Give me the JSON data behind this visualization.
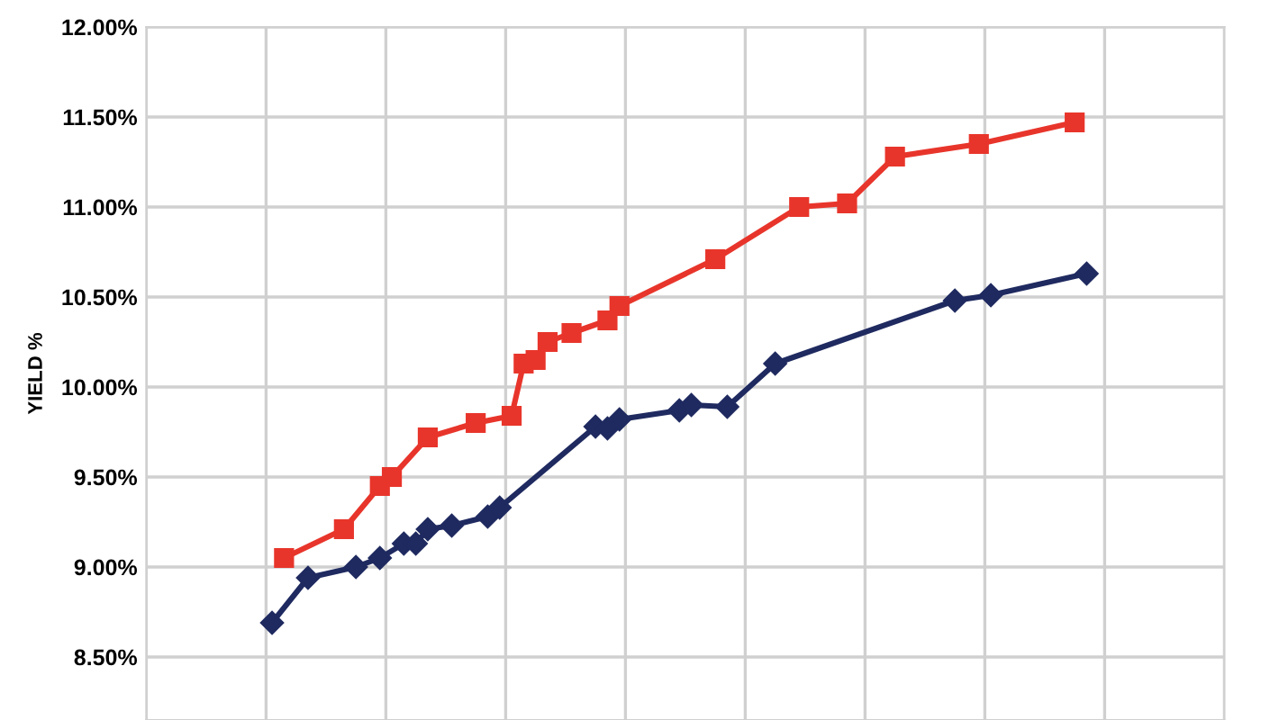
{
  "chart_data": {
    "type": "line",
    "ylabel": "YIELD %",
    "categories": [
      null,
      null,
      null,
      null,
      null,
      null,
      null,
      null,
      null,
      null,
      null,
      null,
      null,
      null,
      null,
      null,
      null,
      null,
      null,
      null,
      null,
      null,
      null,
      null,
      null,
      null,
      null,
      null,
      null,
      null,
      null,
      null,
      null,
      null,
      null,
      null,
      null,
      null,
      null,
      null,
      null,
      null,
      null,
      null,
      null,
      null,
      null,
      null,
      null,
      null,
      null,
      null,
      null,
      null,
      null,
      null,
      null,
      null,
      null,
      null,
      null,
      null,
      null,
      null,
      null,
      null,
      null,
      null,
      null,
      null,
      null,
      null,
      null,
      null,
      null,
      null,
      null,
      null,
      null,
      null,
      null,
      null,
      null,
      null,
      null,
      null,
      null,
      null,
      null,
      null
    ],
    "ylim": [
      8.15,
      12.0
    ],
    "yticks": [
      {
        "value": 8.5,
        "label": "8.50%"
      },
      {
        "value": 9.0,
        "label": "9.00%"
      },
      {
        "value": 9.5,
        "label": "9.50%"
      },
      {
        "value": 10.0,
        "label": "10.00%"
      },
      {
        "value": 10.5,
        "label": "10.50%"
      },
      {
        "value": 11.0,
        "label": "11.00%"
      },
      {
        "value": 11.5,
        "label": "11.50%"
      },
      {
        "value": 12.0,
        "label": "12.00%"
      }
    ],
    "tick_labels": "y",
    "grid": true,
    "line_style": "solid",
    "series": [
      {
        "color": "#e8352b",
        "marker": "square",
        "values": [
          null,
          null,
          null,
          null,
          null,
          null,
          null,
          null,
          null,
          null,
          null,
          9.05,
          null,
          null,
          null,
          null,
          9.21,
          null,
          null,
          9.45,
          9.5,
          null,
          null,
          9.72,
          null,
          null,
          null,
          9.8,
          null,
          null,
          9.84,
          10.13,
          10.15,
          10.25,
          null,
          10.3,
          null,
          null,
          10.37,
          10.45,
          null,
          null,
          null,
          null,
          null,
          null,
          null,
          10.71,
          null,
          null,
          null,
          null,
          null,
          null,
          11.0,
          null,
          null,
          null,
          11.02,
          null,
          null,
          null,
          11.28,
          null,
          null,
          null,
          null,
          null,
          null,
          11.35,
          null,
          null,
          null,
          null,
          null,
          null,
          null,
          11.47,
          null,
          null,
          null,
          null,
          null,
          null,
          null,
          null,
          null,
          null,
          null,
          null
        ]
      },
      {
        "color": "#1f2a60",
        "marker": "diamond",
        "values": [
          null,
          null,
          null,
          null,
          null,
          null,
          null,
          null,
          null,
          null,
          8.69,
          null,
          null,
          8.94,
          null,
          null,
          null,
          9.0,
          null,
          9.05,
          null,
          9.13,
          9.13,
          9.21,
          null,
          9.23,
          null,
          null,
          9.28,
          9.33,
          null,
          null,
          null,
          null,
          null,
          null,
          null,
          9.78,
          9.77,
          9.82,
          null,
          null,
          null,
          null,
          9.87,
          9.9,
          null,
          null,
          9.89,
          null,
          null,
          null,
          10.13,
          null,
          null,
          null,
          null,
          null,
          null,
          null,
          null,
          null,
          null,
          null,
          null,
          null,
          null,
          10.48,
          null,
          null,
          10.51,
          null,
          null,
          null,
          null,
          null,
          null,
          null,
          10.63,
          null,
          null,
          null,
          null,
          null,
          null,
          null,
          null,
          null,
          null,
          null
        ]
      }
    ]
  }
}
